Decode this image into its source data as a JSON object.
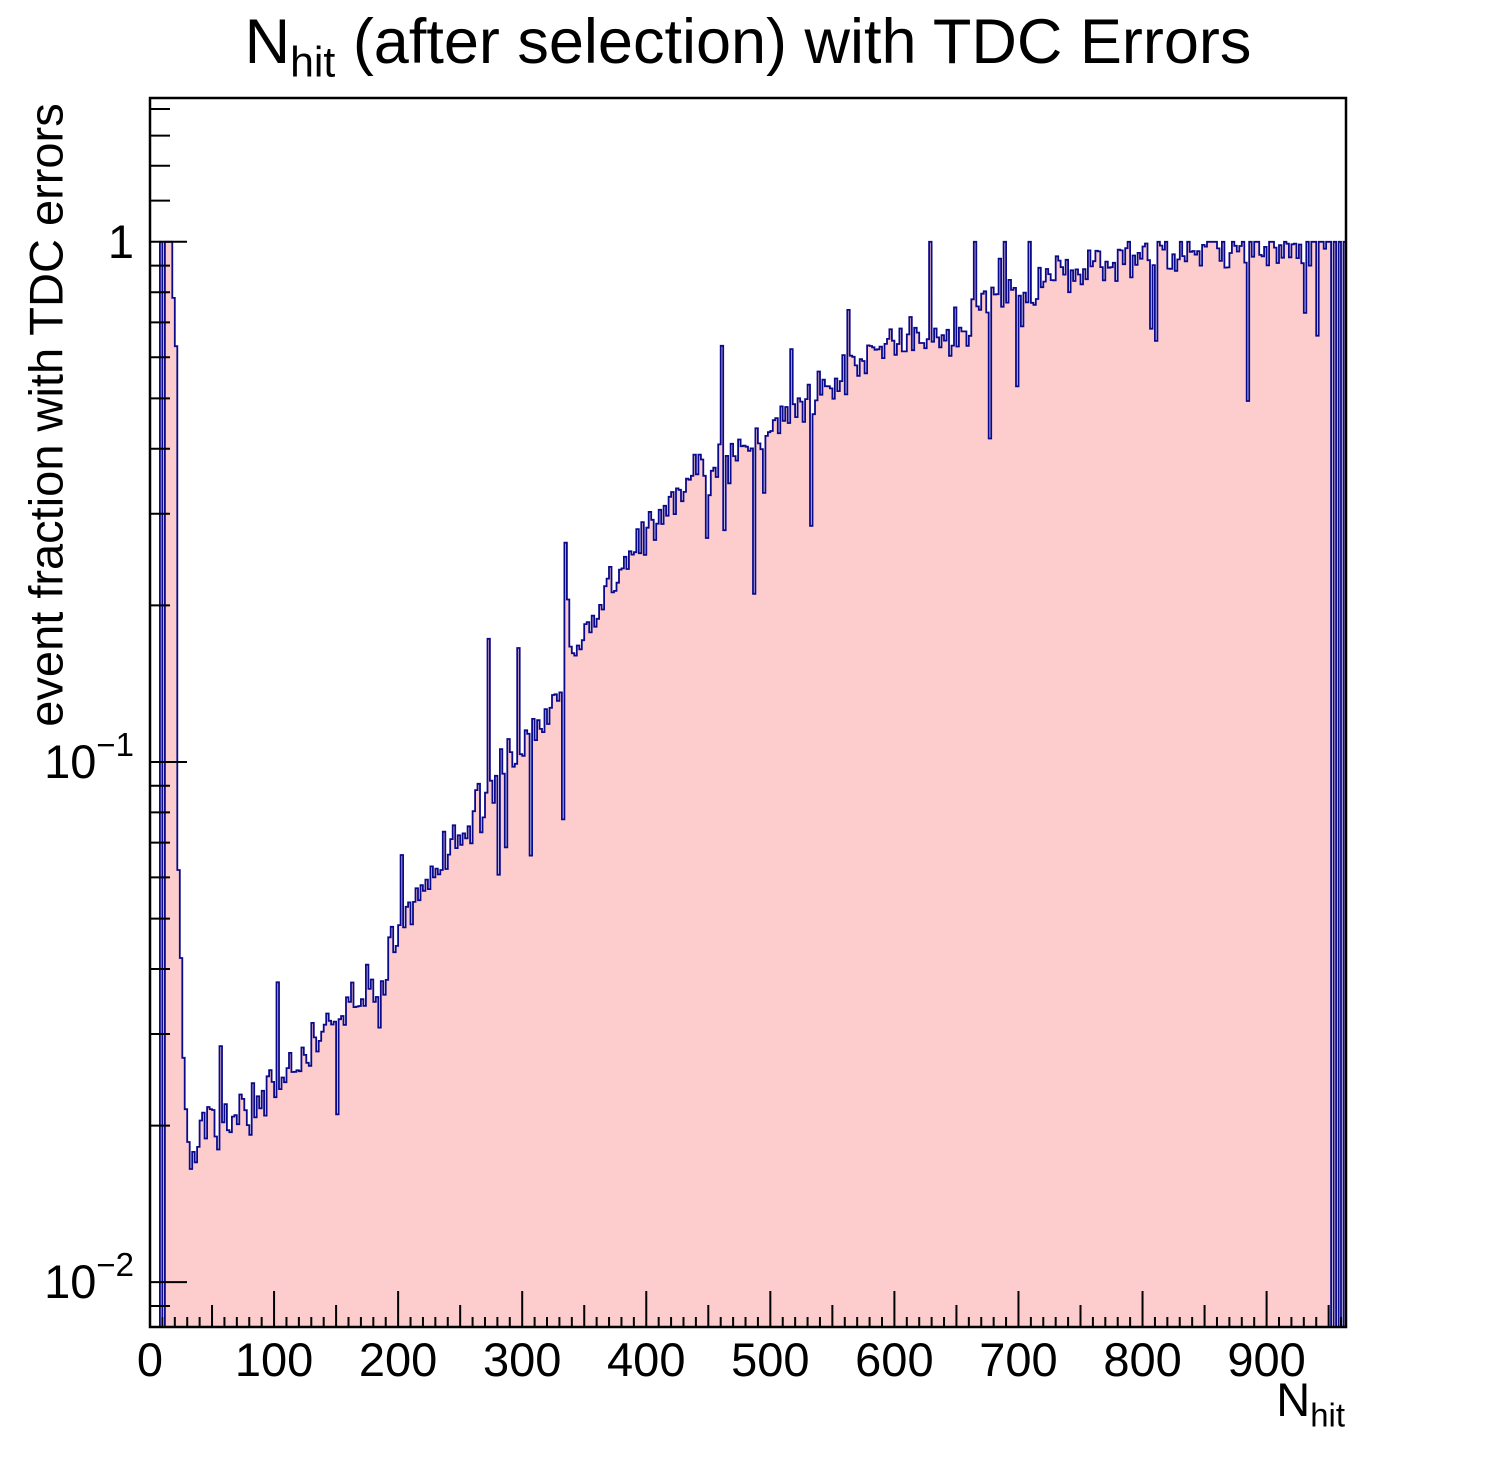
{
  "chart_data": {
    "type": "bar",
    "subtype": "filled-step-histogram",
    "title": {
      "prefix": "N",
      "subscript": "hit",
      "suffix": " (after selection) with TDC Errors"
    },
    "x_axis": {
      "title_prefix": "N",
      "title_subscript": "hit",
      "range": [
        0,
        964
      ],
      "tick_labels": [
        {
          "v": 0,
          "t": "0"
        },
        {
          "v": 100,
          "t": "100"
        },
        {
          "v": 200,
          "t": "200"
        },
        {
          "v": 300,
          "t": "300"
        },
        {
          "v": 400,
          "t": "400"
        },
        {
          "v": 500,
          "t": "500"
        },
        {
          "v": 600,
          "t": "600"
        },
        {
          "v": 700,
          "t": "700"
        },
        {
          "v": 800,
          "t": "800"
        },
        {
          "v": 900,
          "t": "900"
        }
      ],
      "major_step": 100,
      "medium_step": 50,
      "minor_step": 10
    },
    "y_axis": {
      "title": "event fraction with TDC errors",
      "scale": "log",
      "range": [
        0.0082,
        1.89
      ],
      "major_ticks": [
        {
          "v": 1,
          "base": "1",
          "exp": ""
        },
        {
          "v": 0.1,
          "base": "10",
          "exp": "−1"
        },
        {
          "v": 0.01,
          "base": "10",
          "exp": "−2"
        }
      ],
      "minor_decades": [
        1,
        0.1,
        0.01
      ],
      "minor_upper": [
        1.2,
        1.4,
        1.6,
        1.8
      ],
      "grid": false
    },
    "legend": null,
    "bin_width": 2,
    "explicit_bins_low": [
      [
        0,
        0
      ],
      [
        2,
        0
      ],
      [
        4,
        0
      ],
      [
        6,
        0
      ],
      [
        8,
        1
      ],
      [
        10,
        0
      ],
      [
        12,
        1
      ],
      [
        14,
        1
      ],
      [
        16,
        1
      ],
      [
        18,
        0.78
      ],
      [
        20,
        0.63
      ],
      [
        22,
        0.062
      ],
      [
        24,
        0.042
      ],
      [
        26,
        0.027
      ],
      [
        28,
        0.0215
      ],
      [
        30,
        0.0186
      ],
      [
        32,
        0.0165
      ],
      [
        34,
        0.0178
      ],
      [
        36,
        0.017
      ],
      [
        38,
        0.0182
      ]
    ],
    "explicit_bins_high": [
      [
        930,
        0.73
      ],
      [
        932,
        1
      ],
      [
        934,
        0.9
      ],
      [
        936,
        1
      ],
      [
        938,
        1
      ],
      [
        940,
        0.66
      ],
      [
        942,
        1
      ],
      [
        944,
        1
      ],
      [
        946,
        0.97
      ],
      [
        948,
        1
      ],
      [
        950,
        1
      ],
      [
        952,
        0
      ],
      [
        954,
        1
      ],
      [
        956,
        0
      ],
      [
        958,
        1
      ],
      [
        960,
        0
      ],
      [
        962,
        1
      ]
    ],
    "trend": [
      [
        40,
        0.0193
      ],
      [
        65,
        0.0202
      ],
      [
        89,
        0.0217
      ],
      [
        113,
        0.026
      ],
      [
        137,
        0.0295
      ],
      [
        161,
        0.0333
      ],
      [
        185,
        0.039
      ],
      [
        210,
        0.05
      ],
      [
        234,
        0.066
      ],
      [
        258,
        0.075
      ],
      [
        282,
        0.096
      ],
      [
        306,
        0.112
      ],
      [
        331,
        0.135
      ],
      [
        363,
        0.2
      ],
      [
        403,
        0.285
      ],
      [
        444,
        0.365
      ],
      [
        484,
        0.415
      ],
      [
        524,
        0.49
      ],
      [
        565,
        0.57
      ],
      [
        605,
        0.65
      ],
      [
        645,
        0.68
      ],
      [
        686,
        0.76
      ],
      [
        726,
        0.87
      ],
      [
        766,
        0.9
      ],
      [
        806,
        0.93
      ],
      [
        847,
        0.965
      ],
      [
        879,
        0.985
      ],
      [
        895,
        0.998
      ],
      [
        928,
        1.0
      ]
    ],
    "noise": {
      "seed": 7,
      "amp_dex": 0.05,
      "spike_prob": 0.07,
      "spike_min_dex": 0.1,
      "spike_max_dex": 0.28,
      "down_bias": 0.6
    },
    "colors": {
      "fill": "#fdcccc",
      "line": "#0a0a8c",
      "frame": "#000000",
      "background": "#ffffff"
    }
  }
}
